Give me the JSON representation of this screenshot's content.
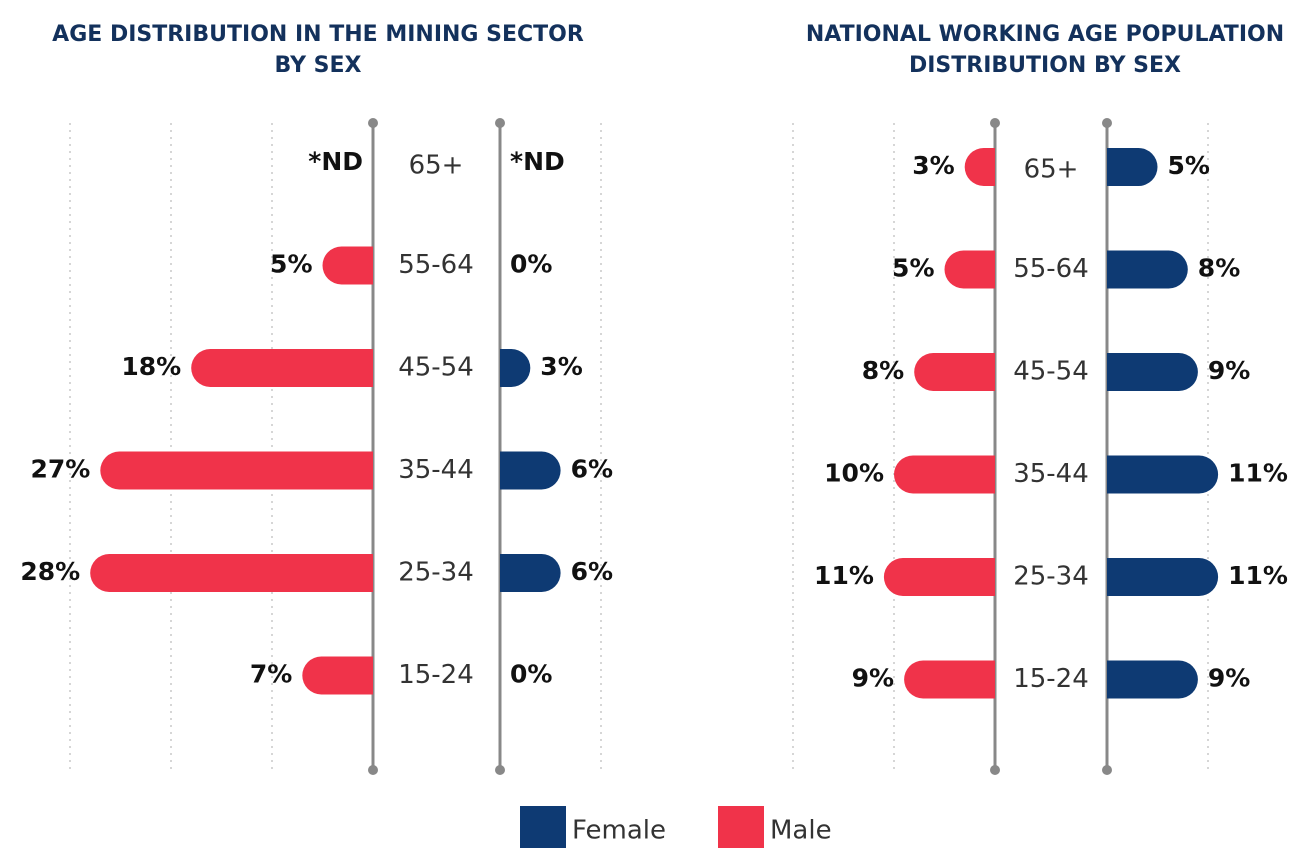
{
  "chart_data": [
    {
      "type": "pyramid",
      "title": [
        "AGE DISTRIBUTION IN THE MINING SECTOR",
        "BY SEX"
      ],
      "categories": [
        "65+",
        "55-64",
        "45-54",
        "35-44",
        "25-34",
        "15-24"
      ],
      "series": [
        {
          "name": "Male",
          "color": "#f0334a",
          "values": [
            null,
            5,
            18,
            27,
            28,
            7
          ],
          "value_labels": [
            "*ND",
            "5%",
            "18%",
            "27%",
            "28%",
            "7%"
          ]
        },
        {
          "name": "Female",
          "color": "#0e3a73",
          "values": [
            null,
            0,
            3,
            6,
            6,
            0
          ],
          "value_labels": [
            "*ND",
            "0%",
            "3%",
            "6%",
            "6%",
            "0%"
          ]
        }
      ],
      "xticks": [
        10,
        20,
        30
      ],
      "grid": true
    },
    {
      "type": "pyramid",
      "title": [
        "NATIONAL WORKING AGE POPULATION",
        "DISTRIBUTION BY SEX"
      ],
      "categories": [
        "65+",
        "55-64",
        "45-54",
        "35-44",
        "25-34",
        "15-24"
      ],
      "series": [
        {
          "name": "Male",
          "color": "#f0334a",
          "values": [
            3,
            5,
            8,
            10,
            11,
            9
          ],
          "value_labels": [
            "3%",
            "5%",
            "8%",
            "10%",
            "11%",
            "9%"
          ]
        },
        {
          "name": "Female",
          "color": "#0e3a73",
          "values": [
            5,
            8,
            9,
            11,
            11,
            9
          ],
          "value_labels": [
            "5%",
            "8%",
            "9%",
            "11%",
            "11%",
            "9%"
          ]
        }
      ],
      "xticks": [
        10,
        20,
        30
      ],
      "grid": true
    }
  ]
}
